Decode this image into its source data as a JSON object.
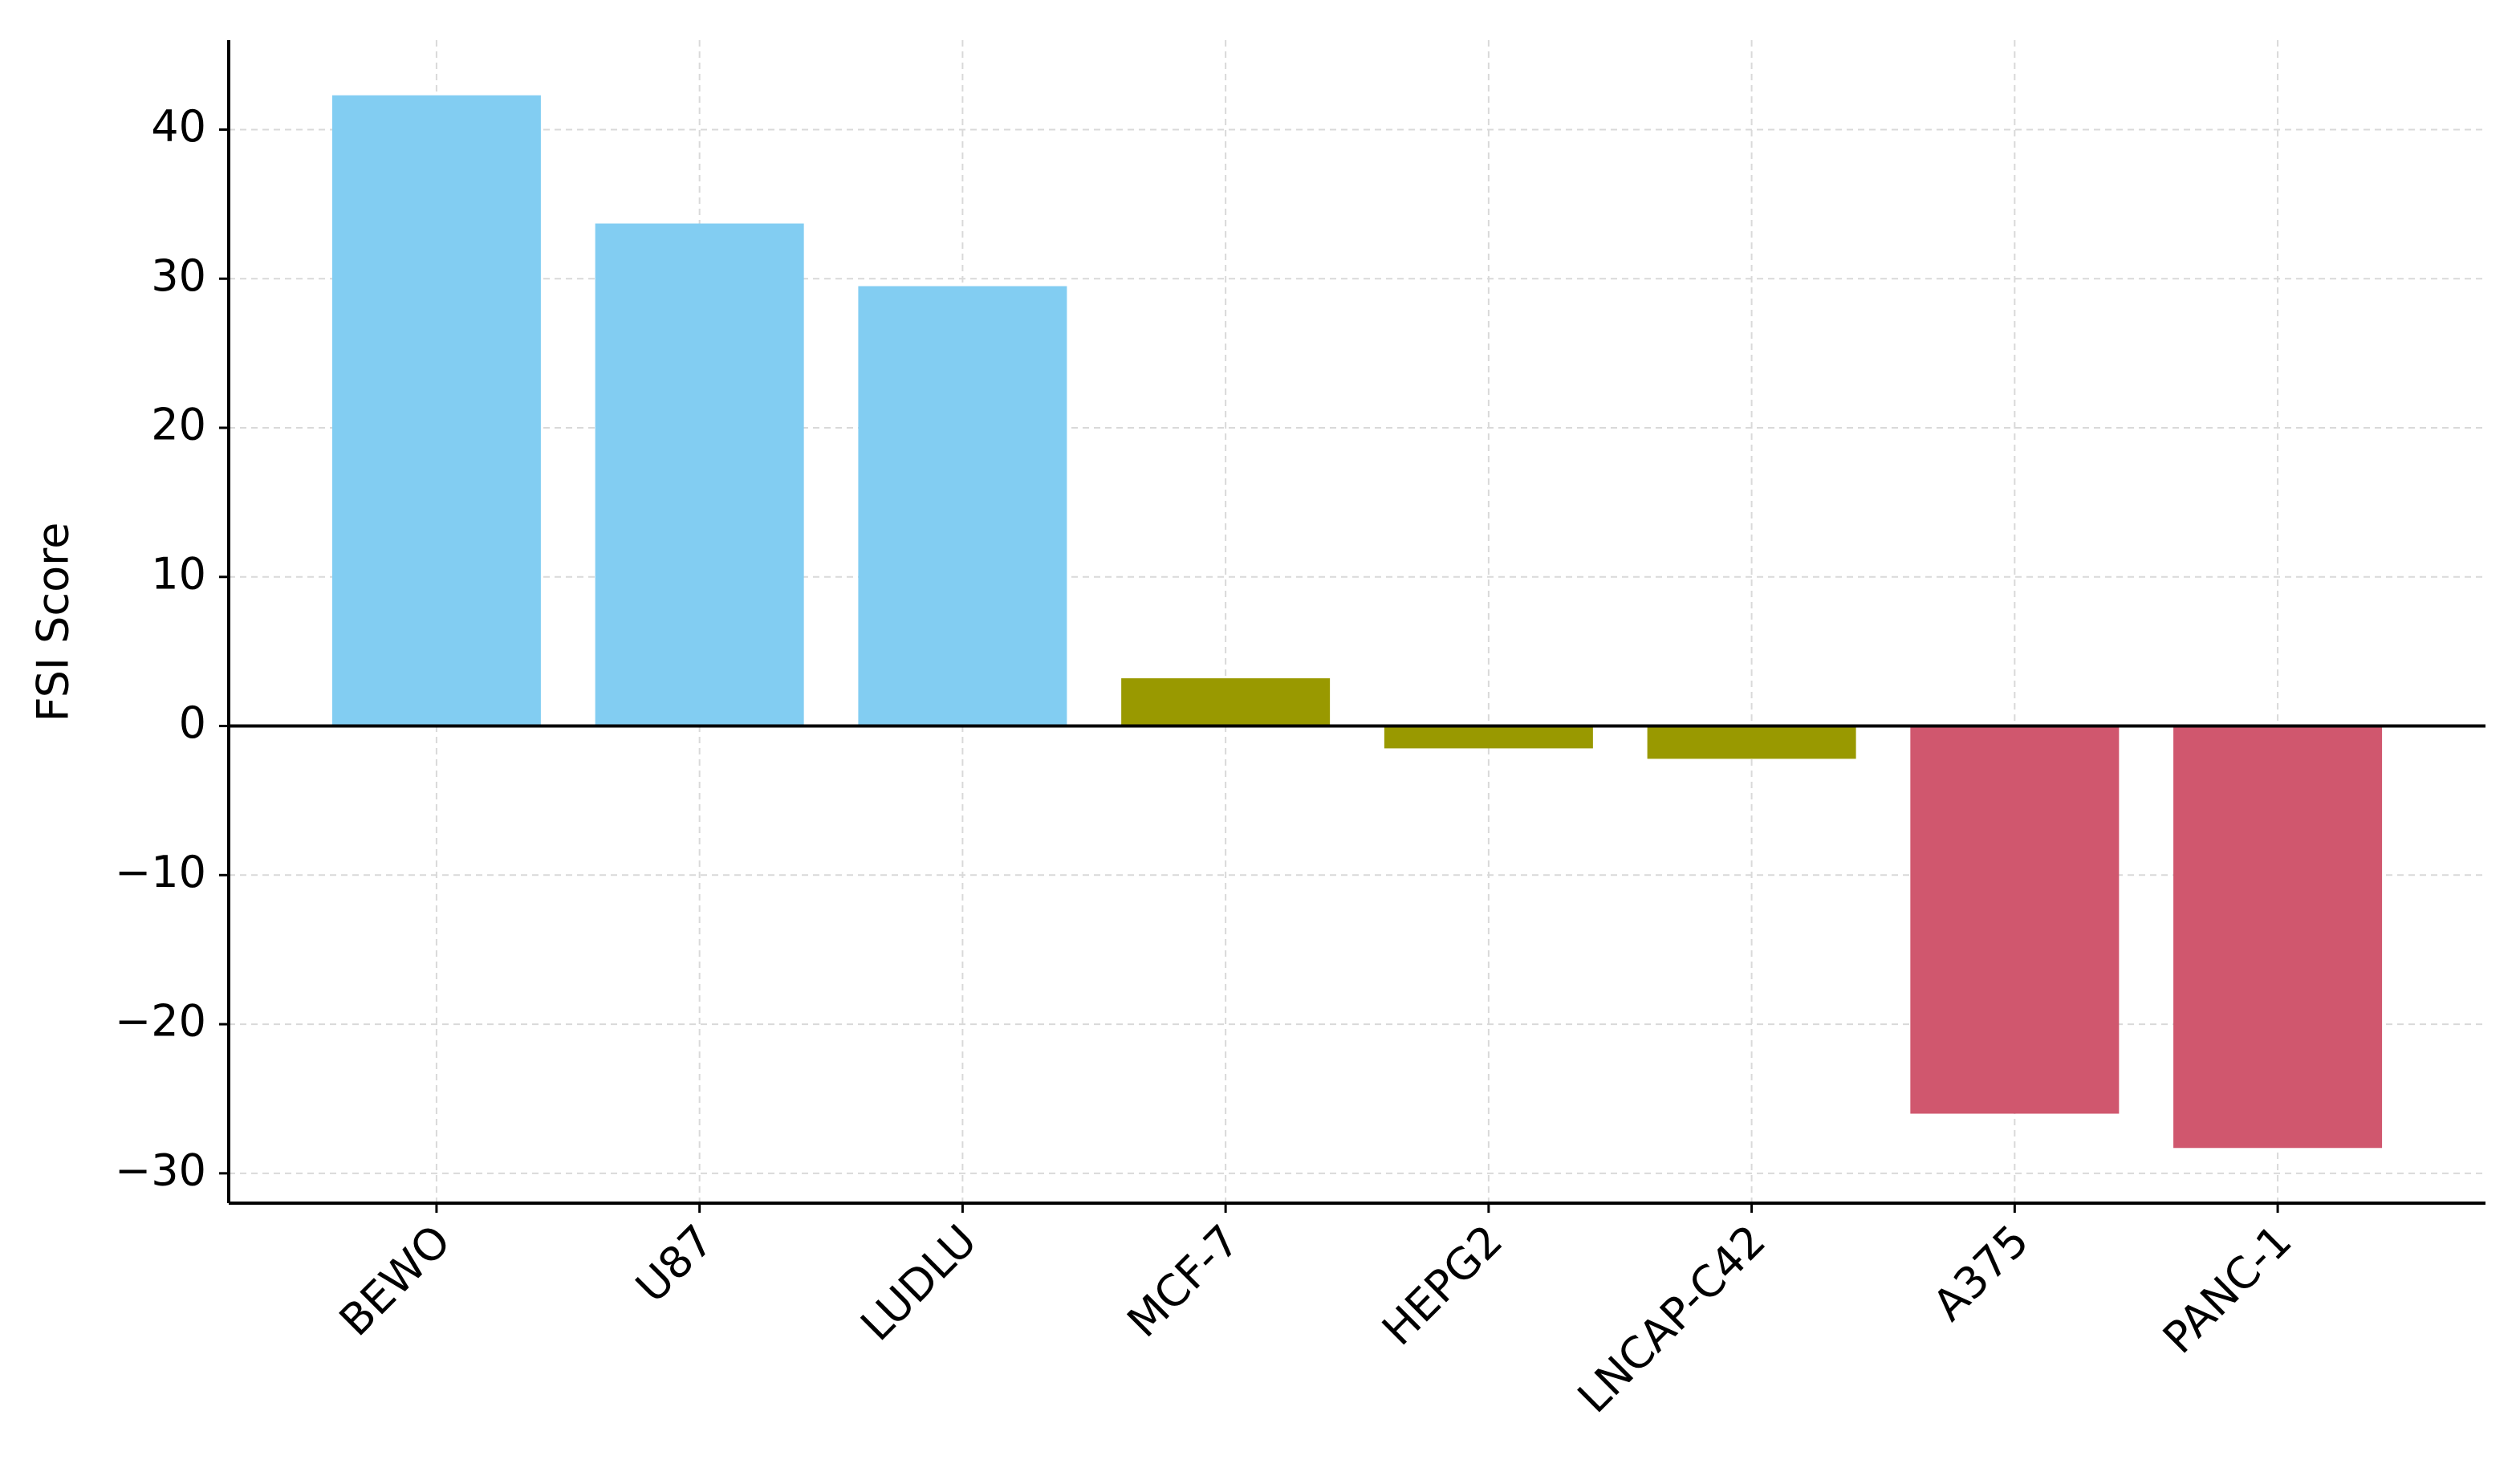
{
  "chart_data": {
    "type": "bar",
    "y_label": "FSI Score",
    "categories": [
      "BEWO",
      "U87",
      "LUDLU",
      "MCF-7",
      "HEPG2",
      "LNCAP-C42",
      "A375",
      "PANC-1"
    ],
    "values": [
      42.3,
      33.7,
      29.5,
      3.2,
      -1.5,
      -2.2,
      -26,
      -28.3
    ],
    "colors": [
      "#82cdf2",
      "#82cdf2",
      "#82cdf2",
      "#999900",
      "#999900",
      "#999900",
      "#d0576e",
      "#d0576e"
    ],
    "ylim": [
      -32,
      46
    ],
    "yticks": [
      {
        "value": -30,
        "label": "−30"
      },
      {
        "value": -20,
        "label": "−20"
      },
      {
        "value": -10,
        "label": "−10"
      },
      0,
      10,
      20,
      30,
      40
    ],
    "grid": true
  }
}
